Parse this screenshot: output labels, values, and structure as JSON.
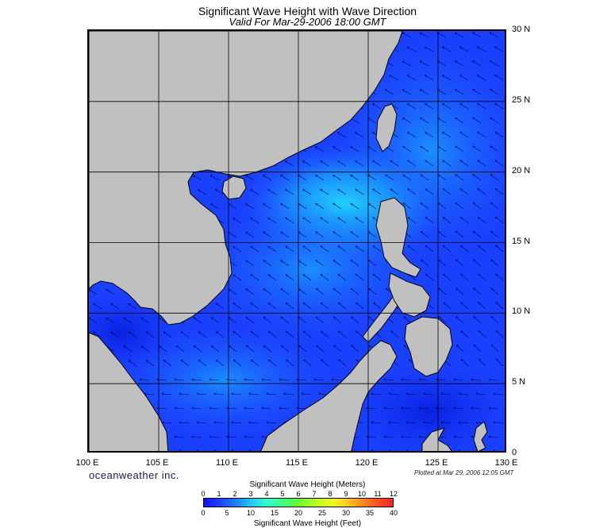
{
  "header": {
    "title": "Significant Wave Height with Wave Direction",
    "subtitle": "Valid For Mar-29-2006 18:00 GMT"
  },
  "map": {
    "lon_labels": [
      "100 E",
      "105 E",
      "110 E",
      "115 E",
      "120 E",
      "125 E",
      "130 E"
    ],
    "lat_labels": [
      "30 N",
      "25 N",
      "20 N",
      "15 N",
      "10 N",
      "5 N",
      "0"
    ],
    "lon_range": [
      100,
      130
    ],
    "lat_range": [
      0,
      30
    ],
    "land_color": "#c0c0c0",
    "sea_base_color": "#1a40ff"
  },
  "footer": {
    "brand": "oceanweather inc.",
    "plotted": "Plotted at Mar 29, 2006 12:05 GMT"
  },
  "legend": {
    "title_meters": "Significant Wave Height (Meters)",
    "title_feet": "Significant Wave Height (Feet)",
    "meters_ticks": [
      "0",
      "1",
      "2",
      "3",
      "4",
      "5",
      "6",
      "7",
      "8",
      "9",
      "10",
      "11",
      "12"
    ],
    "feet_ticks": [
      "0",
      "5",
      "10",
      "15",
      "20",
      "25",
      "30",
      "35",
      "40"
    ]
  }
}
